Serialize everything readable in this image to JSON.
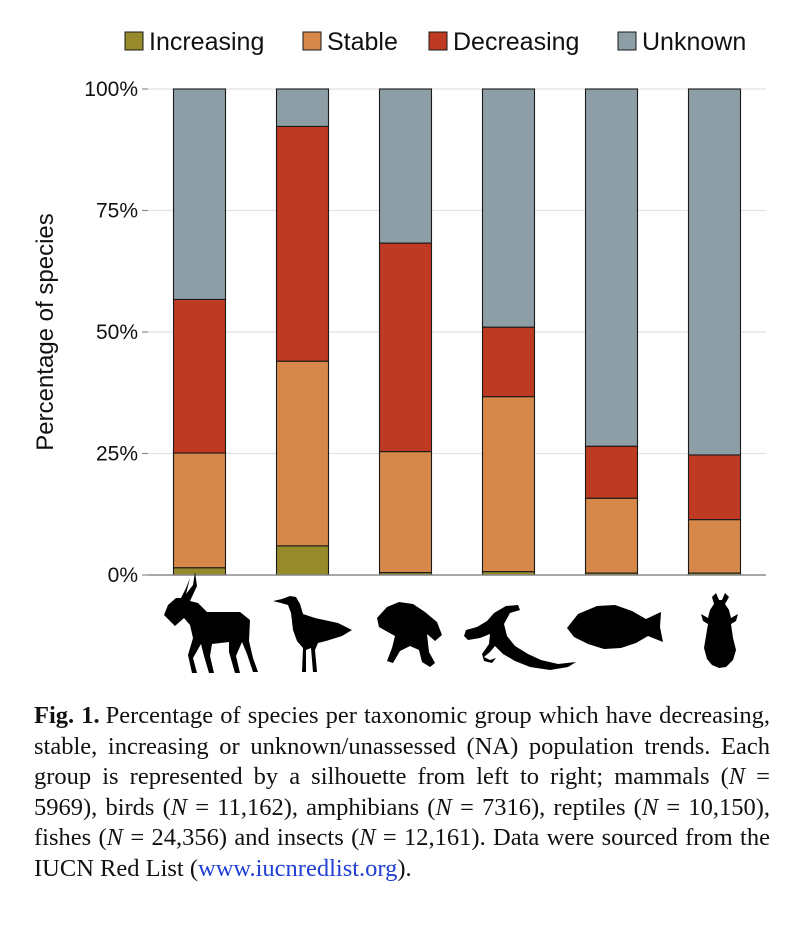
{
  "chart_data": {
    "type": "bar",
    "stacked": true,
    "categories": [
      "mammals",
      "birds",
      "amphibians",
      "reptiles",
      "fishes",
      "insects"
    ],
    "series": [
      {
        "name": "Increasing",
        "color": "#978a2a",
        "values": [
          1.5,
          6.0,
          0.5,
          0.7,
          0.4,
          0.4
        ]
      },
      {
        "name": "Stable",
        "color": "#d6884a",
        "values": [
          23.6,
          38.0,
          24.9,
          36.0,
          15.4,
          11.0
        ]
      },
      {
        "name": "Decreasing",
        "color": "#bf3a22",
        "values": [
          31.6,
          48.3,
          42.9,
          14.3,
          10.7,
          13.3
        ]
      },
      {
        "name": "Unknown",
        "color": "#8e9ea6",
        "values": [
          43.3,
          7.7,
          31.7,
          49.0,
          73.5,
          75.3
        ]
      }
    ],
    "ylabel": "Percentage of species",
    "yticks": [
      "0%",
      "25%",
      "50%",
      "75%",
      "100%"
    ],
    "ylim": [
      0,
      100
    ],
    "grid": true,
    "legend_position": "top"
  },
  "silhouettes": [
    "antelope-icon",
    "shorebird-icon",
    "frog-icon",
    "lizard-icon",
    "fish-icon",
    "beetle-icon"
  ],
  "caption": {
    "label": "Fig. 1.",
    "text_before": "Percentage of species per taxonomic group which have decreasing, stable, increasing or unknown/unassessed (NA) population trends. Each group is represented by a silhouette from left to right; mammals (",
    "n_symbol": "N",
    "mammals_n": " = 5969), birds (",
    "birds_n": " = 11,162), amphibians (",
    "amphibians_n": " = 7316), reptiles (",
    "reptiles_n": " = 10,150), fishes (",
    "fishes_n": " = 24,356) and insects (",
    "insects_n": " = 12,161). Data were sourced from the IUCN Red List (",
    "link": "www.iucnredlist.org",
    "text_after": ")."
  }
}
